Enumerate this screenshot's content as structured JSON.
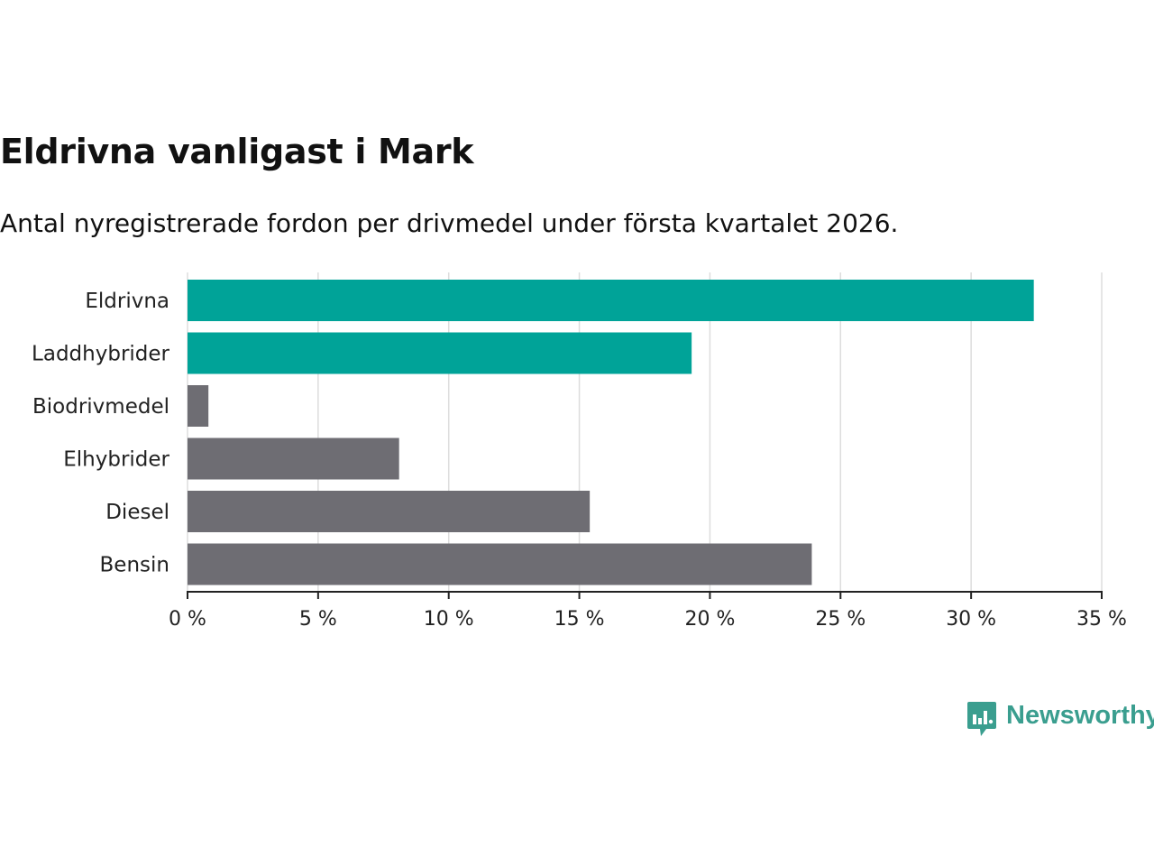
{
  "title": "Eldrivna vanligast i Mark",
  "subtitle": "Antal nyregistrerade fordon per drivmedel under första kvartalet 2026.",
  "chart_data": {
    "type": "bar",
    "orientation": "horizontal",
    "categories": [
      "Eldrivna",
      "Laddhybrider",
      "Biodrivmedel",
      "Elhybrider",
      "Diesel",
      "Bensin"
    ],
    "values": [
      32.4,
      19.3,
      0.8,
      8.1,
      15.4,
      23.9
    ],
    "unit": "%",
    "xlim": [
      0,
      35
    ],
    "xticks": [
      0,
      5,
      10,
      15,
      20,
      25,
      30,
      35
    ],
    "xtick_labels": [
      "0 %",
      "5 %",
      "10 %",
      "15 %",
      "20 %",
      "25 %",
      "30 %",
      "35 %"
    ],
    "highlighted": [
      "Eldrivna",
      "Laddhybrider"
    ],
    "colors": {
      "highlight": "#00A398",
      "default": "#6E6D73",
      "grid": "#DDDDDD",
      "axis": "#222222"
    },
    "grid": true,
    "title": "Eldrivna vanligast i Mark",
    "xlabel": "",
    "ylabel": ""
  },
  "brand": {
    "name": "Newsworthy",
    "icon": "newsworthy-logo-icon",
    "color": "#3A9E8F"
  }
}
